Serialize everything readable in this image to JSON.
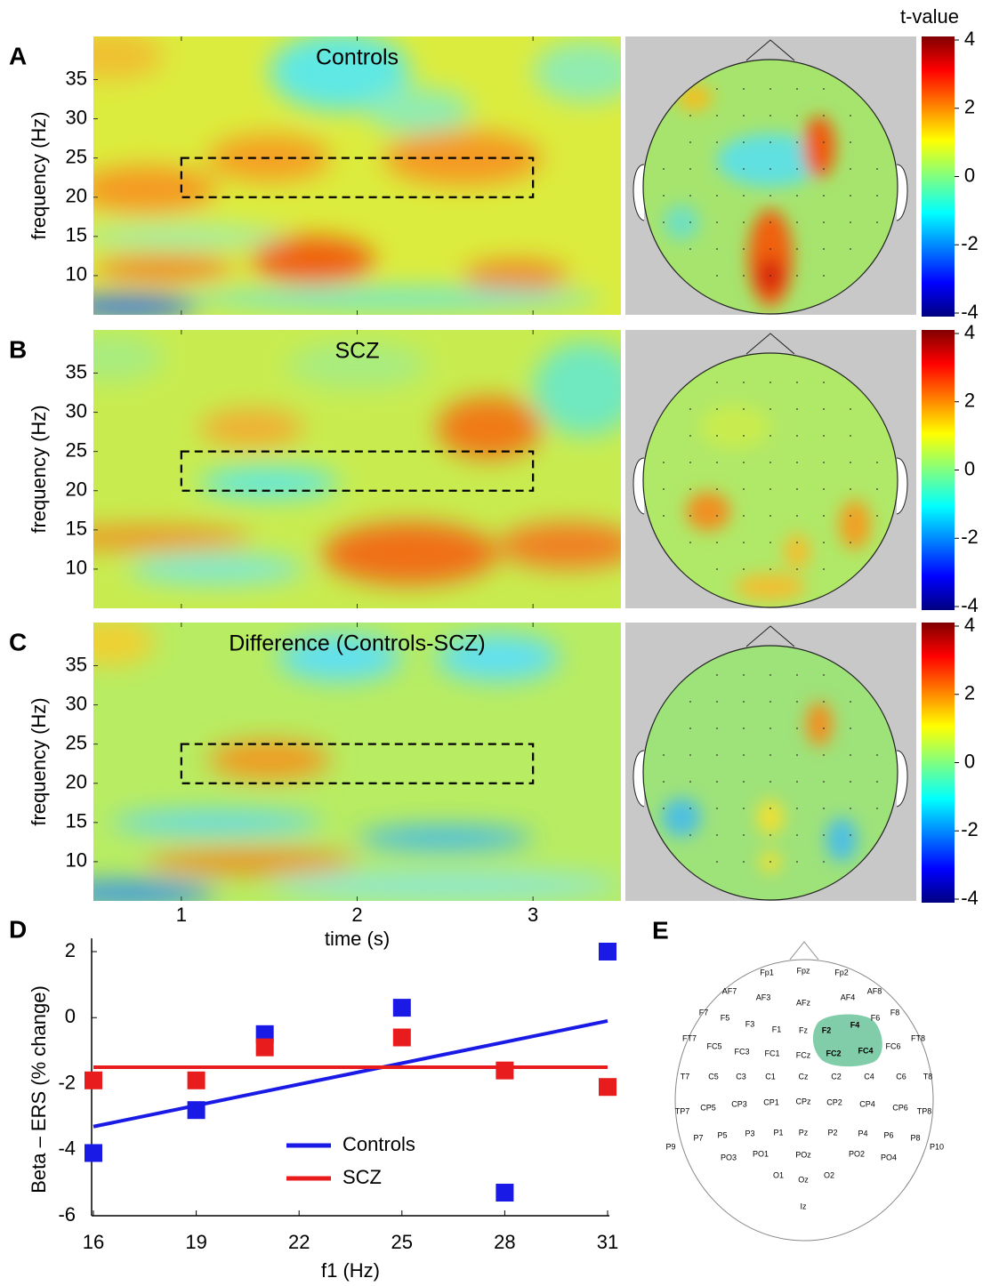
{
  "panels": [
    {
      "letter": "A",
      "title": "Controls",
      "ylabel": "frequency (Hz)"
    },
    {
      "letter": "B",
      "title": "SCZ",
      "ylabel": "frequency (Hz)"
    },
    {
      "letter": "C",
      "title": "Difference  (Controls-SCZ)",
      "ylabel": "frequency (Hz)"
    }
  ],
  "time_frequency": {
    "type": "heatmap",
    "xlabel": "time (s)",
    "xlim": [
      0.5,
      3.5
    ],
    "xticks": [
      1,
      2,
      3
    ],
    "ylim": [
      5,
      40.5
    ],
    "yticks": [
      10,
      15,
      20,
      25,
      30,
      35
    ],
    "window": {
      "time": [
        1,
        3
      ],
      "frequency": [
        20,
        25
      ]
    }
  },
  "colorbar": {
    "title": "t-value",
    "lim": [
      -4,
      4
    ],
    "ticks": [
      4,
      2,
      0,
      -2,
      -4
    ]
  },
  "chart_data": {
    "type": "scatter",
    "letter": "D",
    "xlabel": "f1 (Hz)",
    "ylabel": "Beta – ERS (% change)",
    "x": [
      16,
      19,
      21,
      25,
      28,
      31
    ],
    "xlim": [
      16,
      31
    ],
    "xticks": [
      16,
      19,
      22,
      25,
      28,
      31
    ],
    "ylim": [
      -6,
      2.4
    ],
    "yticks": [
      2,
      0,
      -2,
      -4,
      -6
    ],
    "series": [
      {
        "name": "Controls",
        "color": "#1a1ae6",
        "values": [
          -4.1,
          -2.8,
          -0.5,
          0.3,
          -5.3,
          2.0
        ],
        "fit_x": [
          16,
          31
        ],
        "fit": [
          -3.3,
          -0.1
        ]
      },
      {
        "name": "SCZ",
        "color": "#e81c1c",
        "values": [
          -1.9,
          -1.9,
          -0.9,
          -0.6,
          -1.6,
          -2.1
        ],
        "fit_x": [
          16,
          31
        ],
        "fit": [
          -1.5,
          -1.5
        ]
      }
    ]
  },
  "electrode_map": {
    "letter": "E",
    "labels": [
      "Fp1",
      "Fpz",
      "Fp2",
      "AF7",
      "AF3",
      "AFz",
      "AF4",
      "AF8",
      "F7",
      "F5",
      "F3",
      "F1",
      "Fz",
      "F2",
      "F4",
      "F6",
      "F8",
      "FT7",
      "FC5",
      "FC3",
      "FC1",
      "FCz",
      "FC2",
      "FC4",
      "FC6",
      "FT8",
      "T7",
      "C5",
      "C3",
      "C1",
      "Cz",
      "C2",
      "C4",
      "C6",
      "T8",
      "TP7",
      "CP5",
      "CP3",
      "CP1",
      "CPz",
      "CP2",
      "CP4",
      "CP6",
      "TP8",
      "P9",
      "P7",
      "P5",
      "P3",
      "P1",
      "Pz",
      "P2",
      "P4",
      "P6",
      "P8",
      "P10",
      "PO3",
      "PO1",
      "POz",
      "PO2",
      "PO4",
      "O1",
      "Oz",
      "O2",
      "Iz"
    ]
  }
}
